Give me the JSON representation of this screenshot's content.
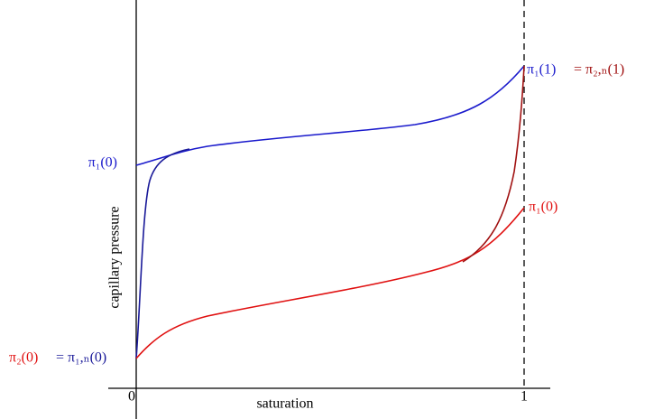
{
  "labels": {
    "upper_left": "π₁(0)",
    "upper_right_a": "π₁(1)",
    "upper_right_b": "= π₂,ₙ(1)",
    "lower_right": "π₁(0)",
    "lower_left_a": "π₂(0)",
    "lower_left_b": "= π₁,ₙ(0)"
  },
  "axes": {
    "y_label": "capillary pressure",
    "x_label": "saturation",
    "x_start": "0",
    "x_end": "1"
  }
}
